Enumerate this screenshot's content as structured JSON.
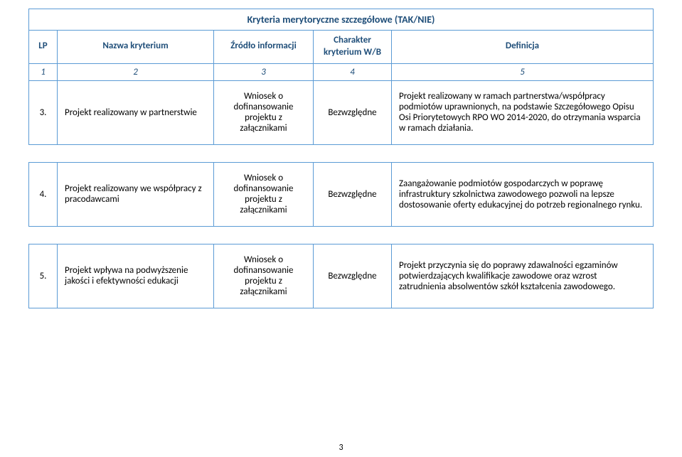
{
  "colors": {
    "border": "#5b9bd5",
    "header_text": "#1f4e79",
    "body_text": "#000000",
    "background": "#ffffff"
  },
  "title": "Kryteria merytoryczne szczegółowe (TAK/NIE)",
  "columns": {
    "lp": "LP",
    "name": "Nazwa kryterium",
    "src": "Źródło informacji",
    "char": "Charakter kryterium W/B",
    "def": "Definicja"
  },
  "col_nums": {
    "c1": "1",
    "c2": "2",
    "c3": "3",
    "c4": "4",
    "c5": "5"
  },
  "rows": [
    {
      "lp": "3.",
      "name": "Projekt realizowany w partnerstwie",
      "src": "Wniosek o dofinansowanie projektu z załącznikami",
      "char": "Bezwzględne",
      "def": "Projekt realizowany w ramach partnerstwa/współpracy podmiotów uprawnionych, na podstawie Szczegółowego Opisu Osi Priorytetowych RPO WO 2014-2020, do otrzymania wsparcia w ramach działania."
    },
    {
      "lp": "4.",
      "name": "Projekt realizowany we współpracy z pracodawcami",
      "src": "Wniosek o dofinansowanie projektu z załącznikami",
      "char": "Bezwzględne",
      "def": "Zaangażowanie podmiotów gospodarczych w poprawę infrastruktury szkolnictwa zawodowego pozwoli na lepsze dostosowanie oferty edukacyjnej do potrzeb regionalnego rynku."
    },
    {
      "lp": "5.",
      "name": "Projekt wpływa na podwyższenie jakości i efektywności edukacji",
      "src": "Wniosek o dofinansowanie projektu z załącznikami",
      "char": "Bezwzględne",
      "def": "Projekt przyczynia się do poprawy zdawalności egzaminów potwierdzających kwalifikacje zawodowe oraz wzrost zatrudnienia absolwentów szkół kształcenia zawodowego."
    }
  ],
  "page_number": "3"
}
